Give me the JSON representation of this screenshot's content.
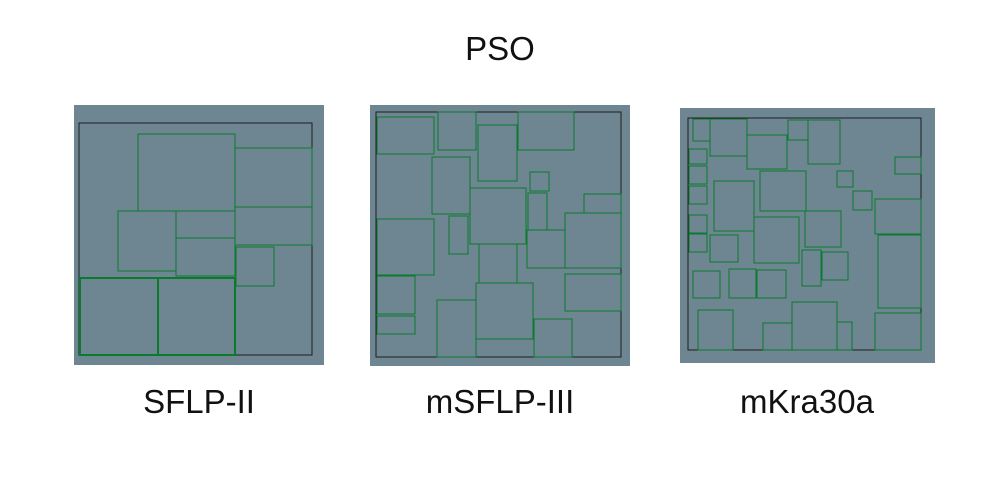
{
  "title": "PSO",
  "panels": [
    {
      "label": "SFLP-II"
    },
    {
      "label": "mSFLP-III"
    },
    {
      "label": "mKra30a"
    }
  ],
  "colors": {
    "background_panel": "#6e8592",
    "facility_outline": "#0a7a2e",
    "boundary_outline": "#1f1f1f"
  }
}
